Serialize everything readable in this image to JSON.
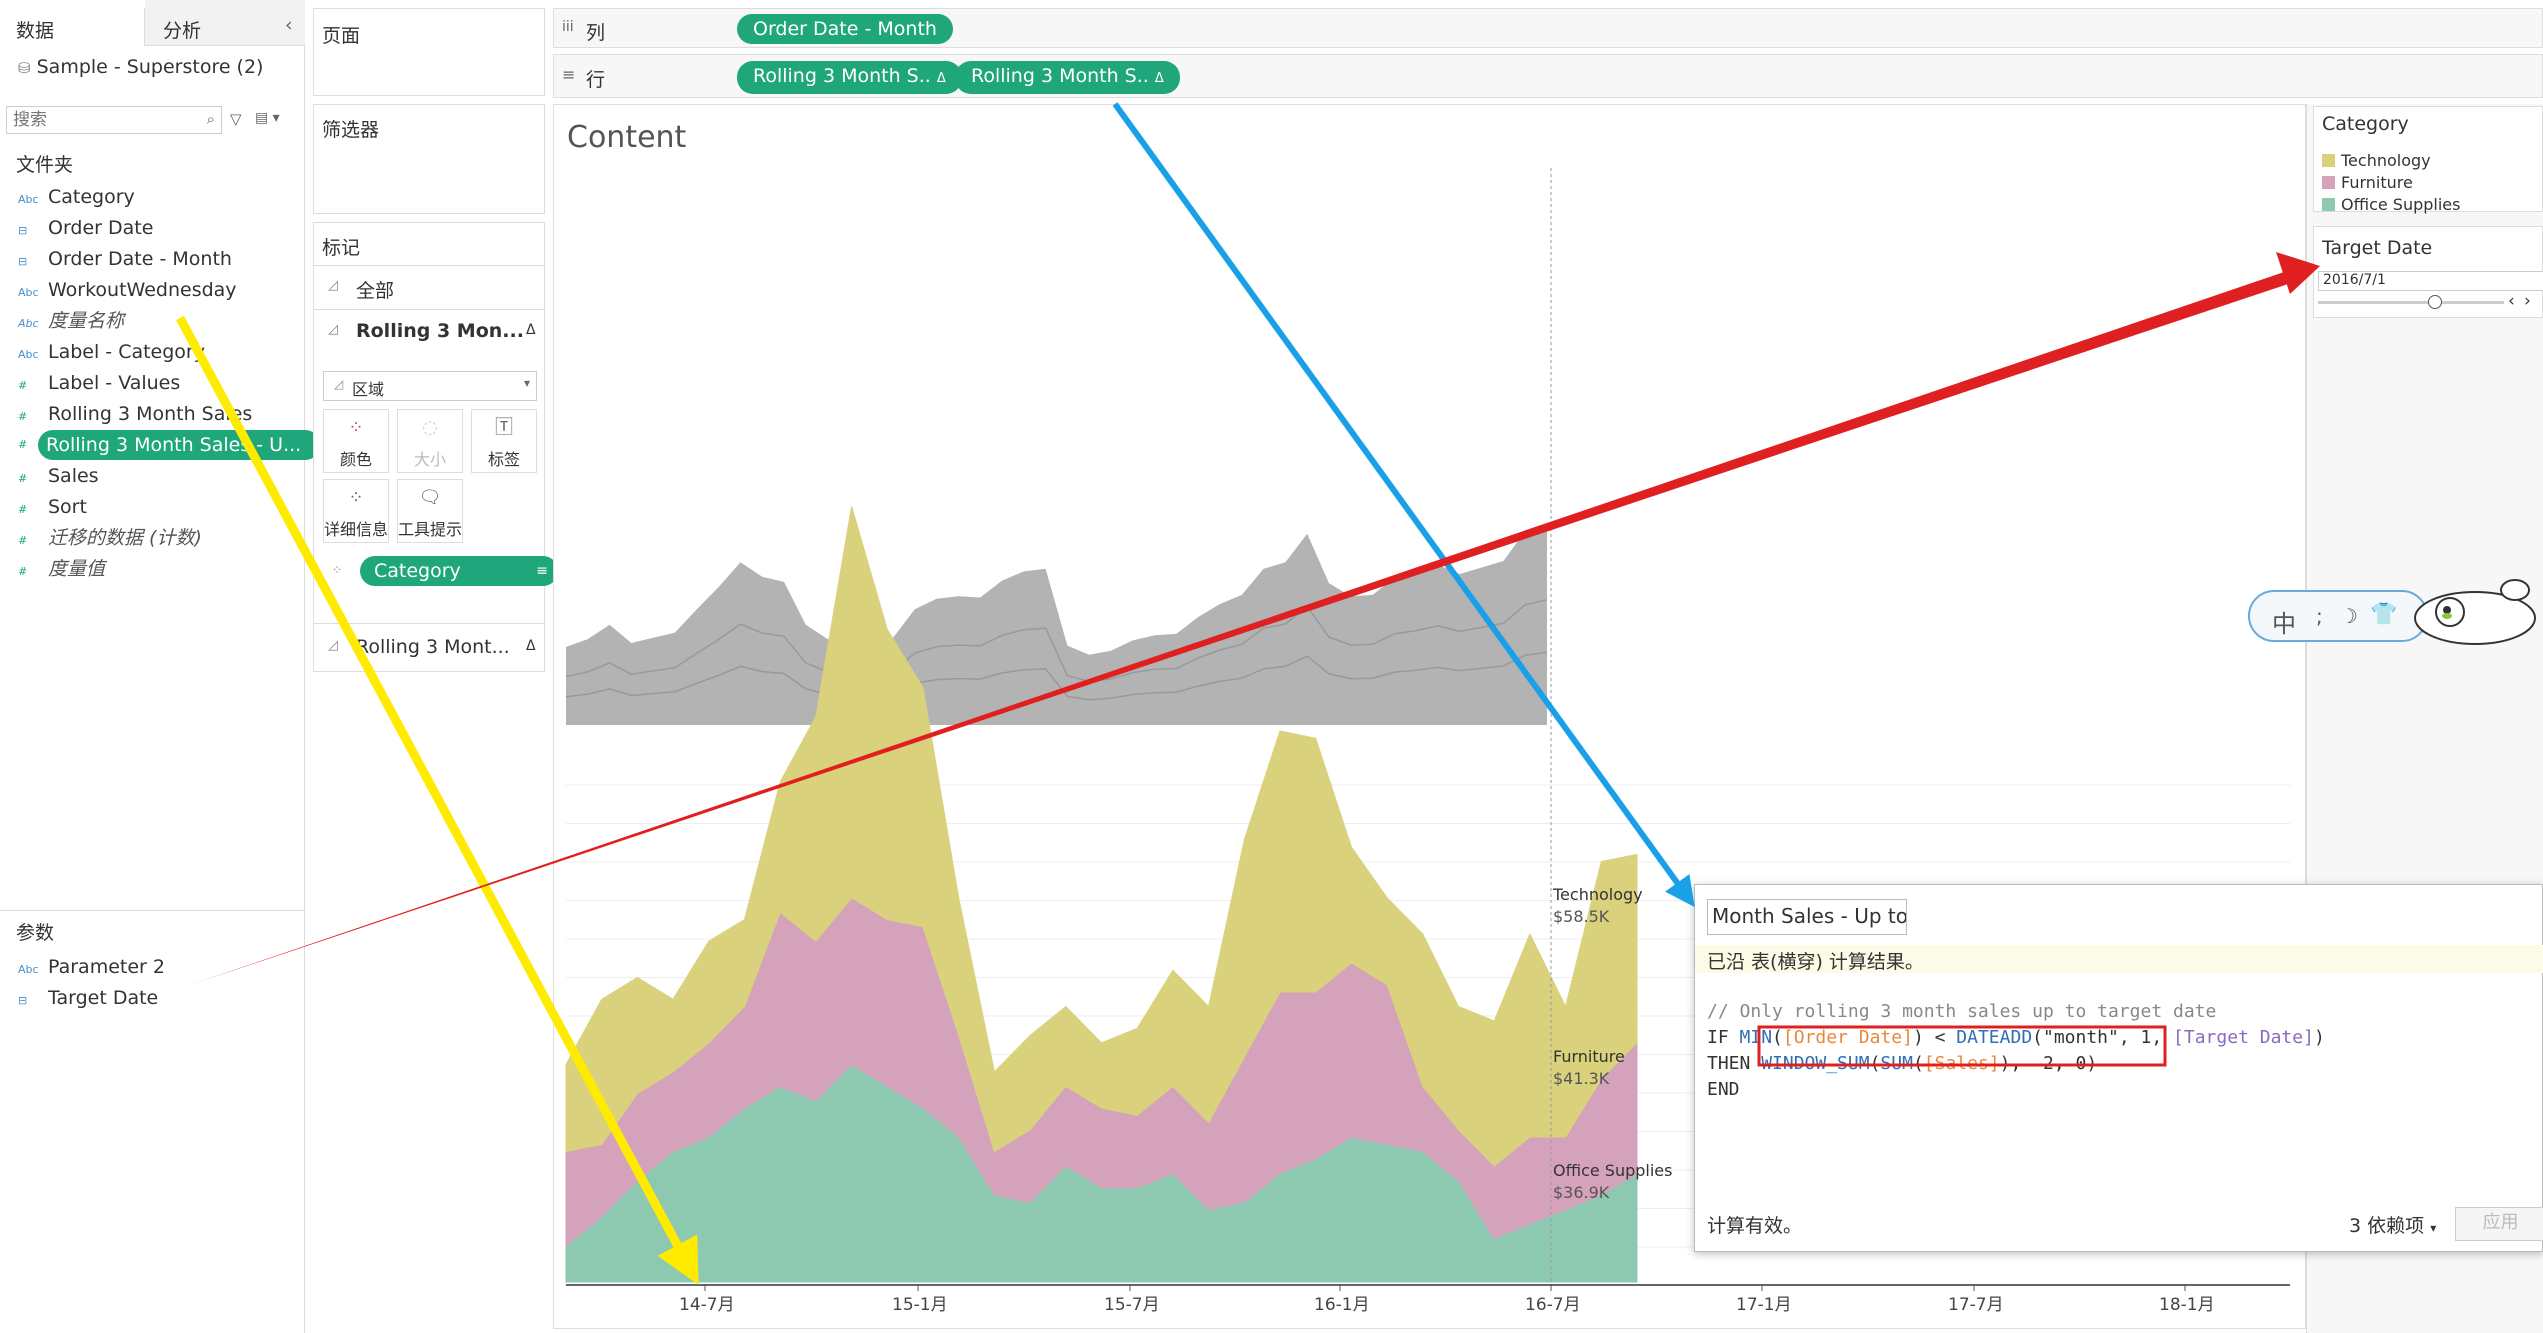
{
  "tabs": {
    "data": "数据",
    "analysis": "分析",
    "collapse": "‹"
  },
  "datasource": "Sample - Superstore (2)",
  "search_placeholder": "搜索",
  "folders_title": "文件夹",
  "fields": [
    {
      "label": "Category",
      "type": "Abc",
      "italic": false
    },
    {
      "label": "Order Date",
      "type": "date",
      "italic": false
    },
    {
      "label": "Order Date - Month",
      "type": "date-calc",
      "italic": false
    },
    {
      "label": "WorkoutWednesday",
      "type": "Abc",
      "italic": false
    },
    {
      "label": "度量名称",
      "type": "Abc",
      "italic": true
    },
    {
      "label": "Label - Category",
      "type": "Abc",
      "italic": false
    },
    {
      "label": "Label - Values",
      "type": "#",
      "italic": false
    },
    {
      "label": "Rolling 3 Month Sales",
      "type": "#",
      "italic": false
    },
    {
      "label": "Rolling 3 Month Sales - U...",
      "type": "#",
      "italic": false,
      "selected": true
    },
    {
      "label": "Sales",
      "type": "#",
      "italic": false
    },
    {
      "label": "Sort",
      "type": "#",
      "italic": false
    },
    {
      "label": "迁移的数据 (计数)",
      "type": "#",
      "italic": true
    },
    {
      "label": "度量值",
      "type": "#",
      "italic": true
    }
  ],
  "params_title": "参数",
  "params": [
    {
      "label": "Parameter 2",
      "type": "Abc"
    },
    {
      "label": "Target Date",
      "type": "date"
    }
  ],
  "shelves": {
    "pages": "页面",
    "filters": "筛选器",
    "marks": "标记",
    "columns_label": "列",
    "rows_label": "行",
    "columns_pill": "Order Date - Month",
    "rows_pills": [
      "Rolling 3 Month S..",
      "Rolling 3 Month S.."
    ]
  },
  "marks": {
    "all": "全部",
    "card1": "Rolling 3 Mon...",
    "card2": "Rolling 3 Mont...",
    "mark_type": "区域",
    "color": "颜色",
    "size": "大小",
    "label": "标签",
    "detail": "详细信息",
    "tooltip": "工具提示",
    "pill": "Category"
  },
  "chart_data": {
    "type": "area",
    "title": "Content",
    "x_ticks": [
      "14-7月",
      "15-1月",
      "15-7月",
      "16-1月",
      "16-7月",
      "17-1月",
      "17-7月",
      "18-1月"
    ],
    "target_date": "2016/7/1",
    "series": [
      {
        "name": "Office Supplies",
        "color": "#8dc9b0",
        "end_value": "$36.9K",
        "values": [
          5,
          9,
          14,
          18,
          20,
          24,
          27,
          25,
          30,
          27,
          24,
          20,
          12,
          11,
          16,
          13,
          13,
          15,
          10,
          11,
          15,
          17,
          20,
          19,
          18,
          14,
          6,
          8,
          10,
          12,
          15
        ]
      },
      {
        "name": "Furniture",
        "color": "#d4a3bb",
        "end_value": "$41.3K",
        "values": [
          13,
          10,
          12,
          11,
          13,
          14,
          24,
          22,
          23,
          23,
          25,
          14,
          6,
          10,
          11,
          11,
          10,
          12,
          12,
          20,
          25,
          23,
          24,
          22,
          9,
          7,
          10,
          12,
          10,
          16,
          18
        ]
      },
      {
        "name": "Technology",
        "color": "#d9d17c",
        "end_value": "$58.5K",
        "values": [
          12,
          20,
          16,
          10,
          14,
          12,
          18,
          31,
          54,
          40,
          33,
          19,
          11,
          13,
          11,
          9,
          12,
          16,
          16,
          30,
          36,
          35,
          16,
          12,
          21,
          17,
          20,
          28,
          18,
          30,
          26
        ]
      }
    ],
    "top_total": [
      60,
      66,
      77,
      63,
      67,
      71,
      89,
      106,
      125,
      114,
      110,
      77,
      66,
      63,
      64,
      67,
      89,
      97,
      99,
      98,
      111,
      118,
      120,
      61,
      54,
      57,
      65,
      69,
      70,
      83,
      93,
      100,
      120,
      125,
      147,
      109,
      99,
      100,
      113,
      117,
      123,
      116,
      121,
      126,
      149,
      155
    ]
  },
  "legend": {
    "title": "Category",
    "items": [
      {
        "label": "Technology",
        "color": "#d9d17c"
      },
      {
        "label": "Furniture",
        "color": "#d4a3bb"
      },
      {
        "label": "Office Supplies",
        "color": "#8dc9b0"
      }
    ]
  },
  "target_param": {
    "title": "Target Date",
    "value": "2016/7/1"
  },
  "calc": {
    "title": "Month Sales - Up to",
    "info": "已沿 表(横穿) 计算结果。",
    "comment": "// Only rolling 3 month sales up to target date",
    "status": "计算有效。",
    "deps": "3 依赖项",
    "apply": "应用"
  },
  "ime": {
    "label": "中"
  }
}
